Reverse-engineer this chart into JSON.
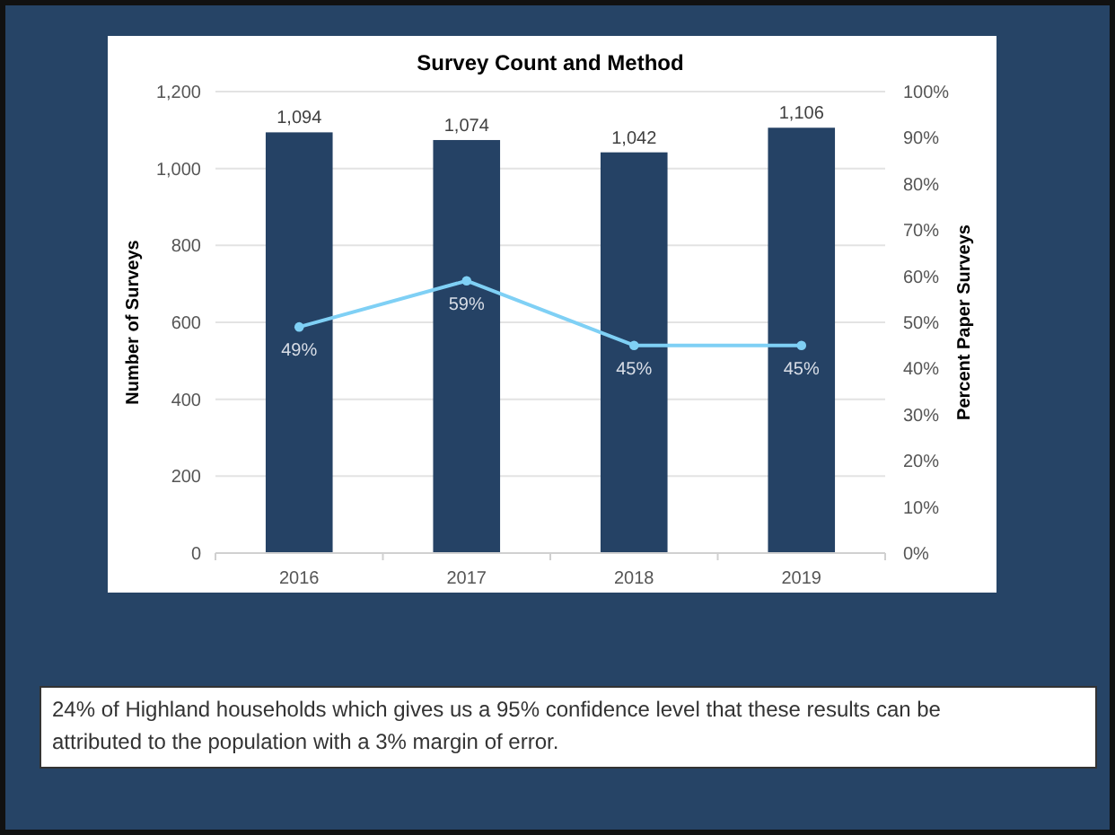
{
  "chart_data": {
    "type": "bar",
    "title": "Survey Count and Method",
    "ylabel": "Number of Surveys",
    "y2label": "Percent Paper Surveys",
    "categories": [
      "2016",
      "2017",
      "2018",
      "2019"
    ],
    "series": [
      {
        "color": "#254265",
        "values": [
          1094,
          1074,
          1042,
          1106
        ],
        "value_labels": [
          "1,094",
          "1,074",
          "1,042",
          "1,106"
        ]
      },
      {
        "type": "line",
        "axis": "y2",
        "color": "#7fd0f5",
        "marker": "circle",
        "values": [
          49,
          59,
          45,
          45
        ],
        "value_labels": [
          "49%",
          "59%",
          "45%",
          "45%"
        ]
      }
    ],
    "ylim": [
      0,
      1200
    ],
    "yticks": [
      0,
      200,
      400,
      600,
      800,
      {
        "value": 1000,
        "label": "1,000"
      },
      {
        "value": 1200,
        "label": "1,200"
      }
    ],
    "y2lim": [
      0,
      100
    ],
    "y2ticks": [
      {
        "value": 0,
        "label": "0%"
      },
      {
        "value": 10,
        "label": "10%"
      },
      {
        "value": 20,
        "label": "20%"
      },
      {
        "value": 30,
        "label": "30%"
      },
      {
        "value": 40,
        "label": "40%"
      },
      {
        "value": 50,
        "label": "50%"
      },
      {
        "value": 60,
        "label": "60%"
      },
      {
        "value": 70,
        "label": "70%"
      },
      {
        "value": 80,
        "label": "80%"
      },
      {
        "value": 90,
        "label": "90%"
      },
      {
        "value": 100,
        "label": "100%"
      }
    ],
    "grid": "y",
    "annotations": [
      "24% of Highland households which gives us a 95% confidence level that these results can be attributed to the population with a 3% margin of error."
    ]
  }
}
